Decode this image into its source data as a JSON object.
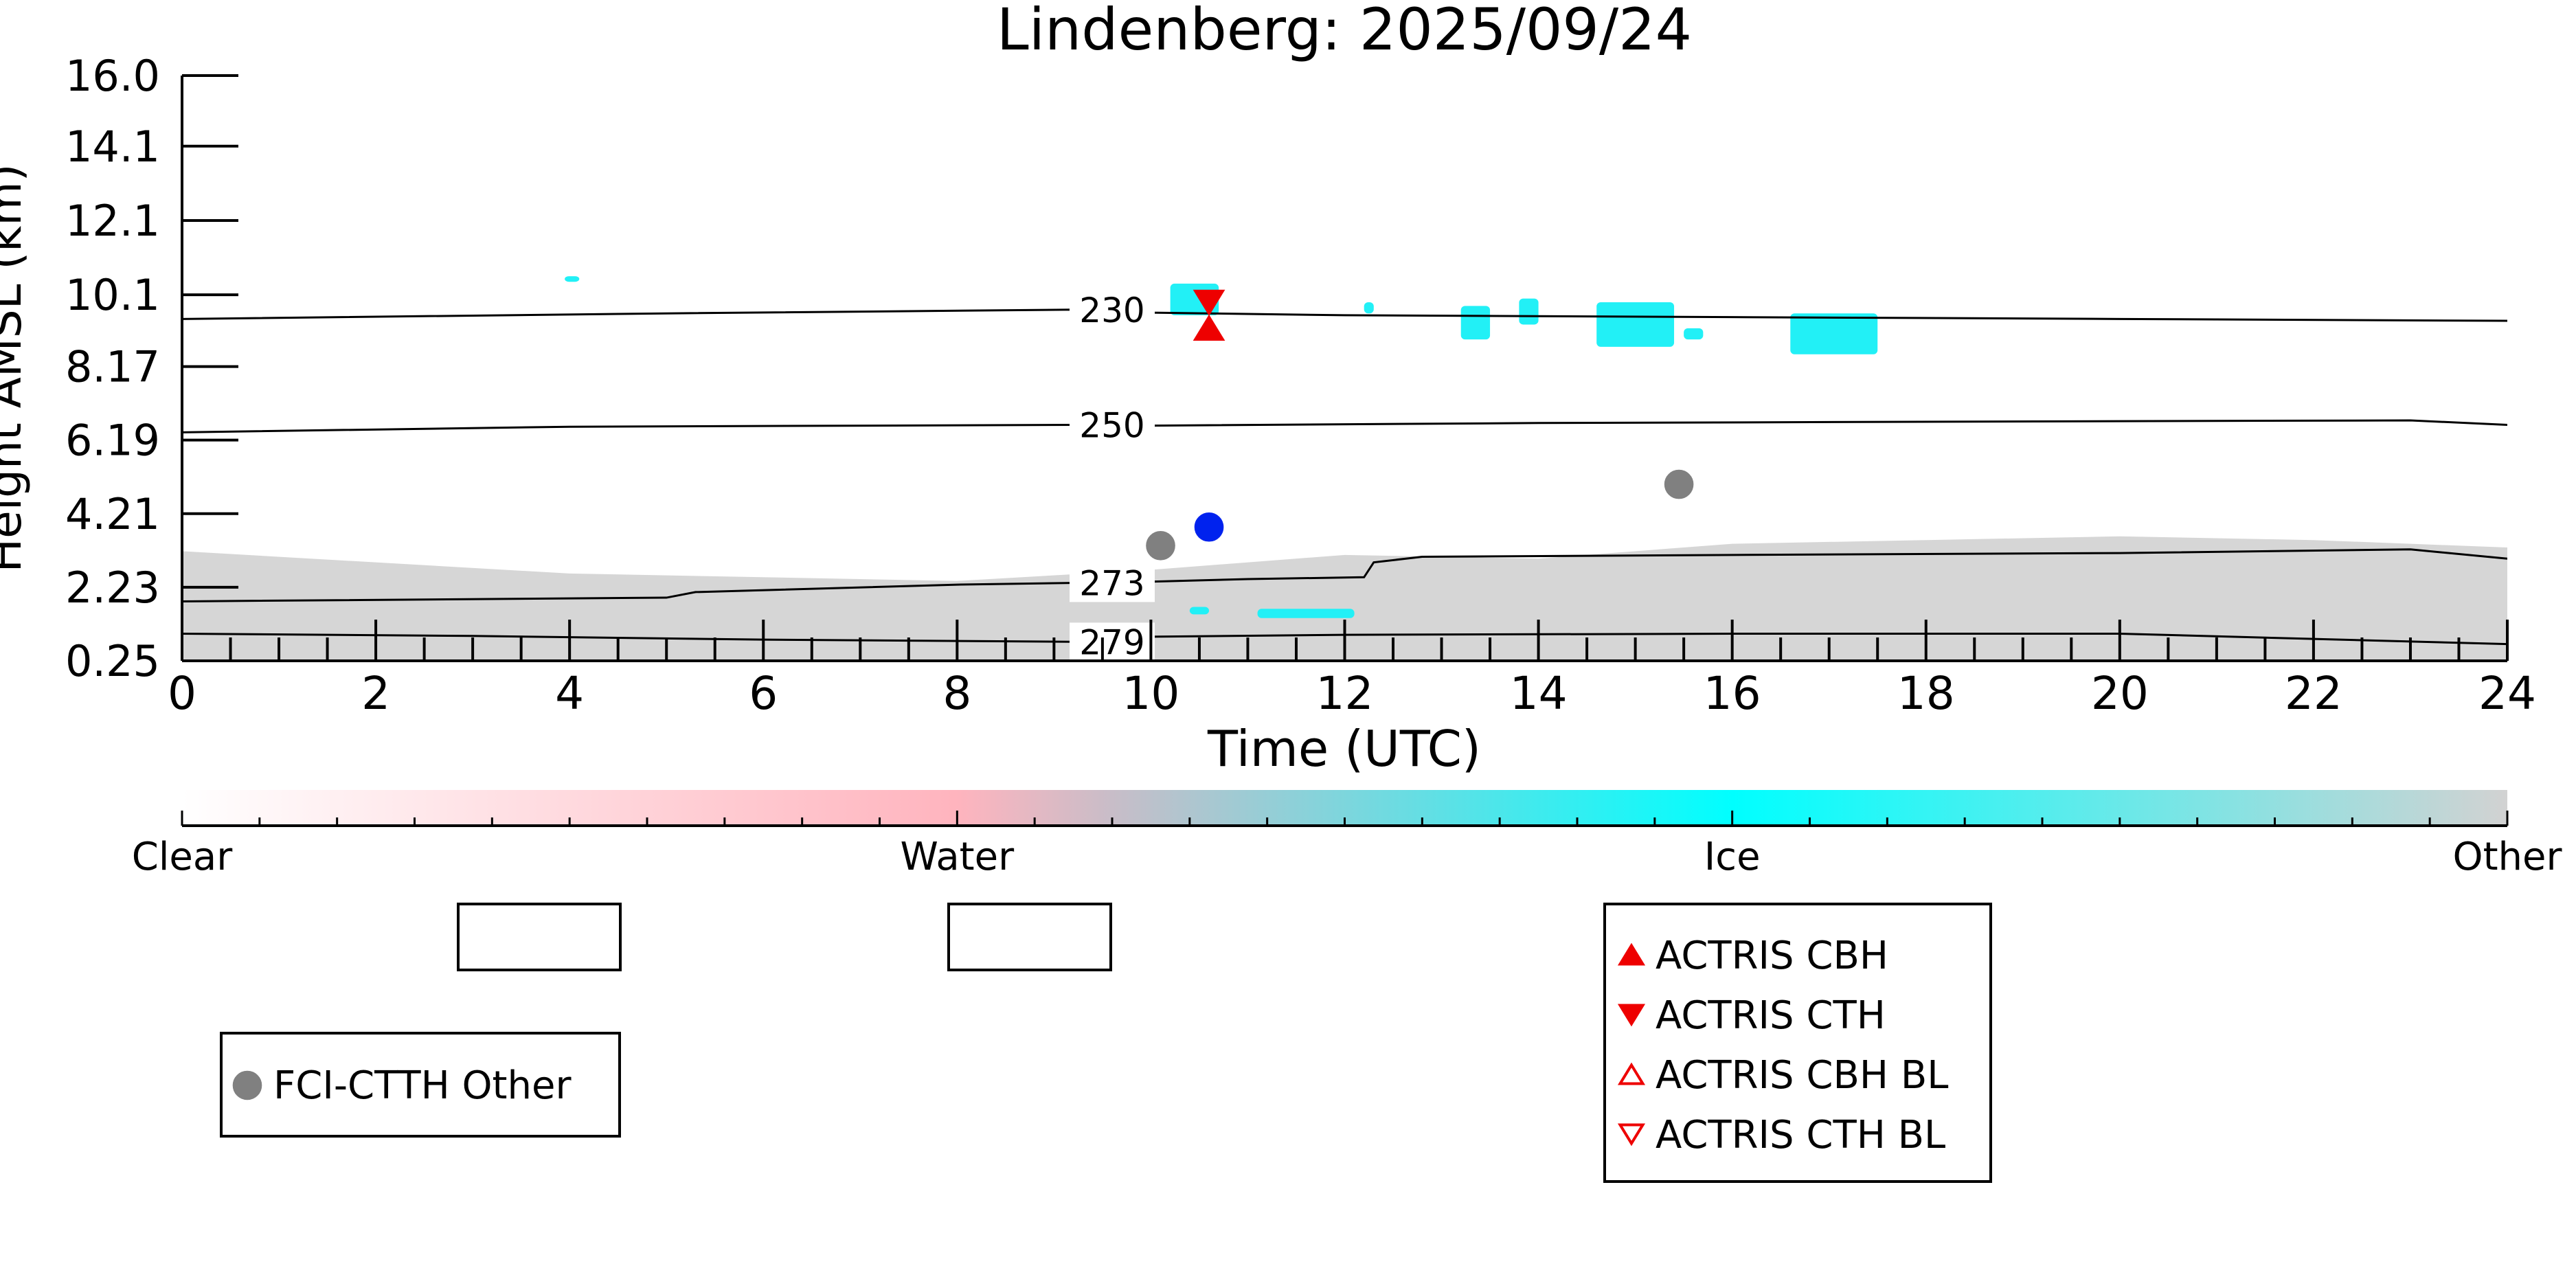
{
  "chart_data": {
    "type": "scatter",
    "title": "Lindenberg: 2025/09/24",
    "xlabel": "Time (UTC)",
    "ylabel": "Height AMSL (km)",
    "xlim": [
      0,
      24
    ],
    "ylim": [
      0.25,
      16.0
    ],
    "x_ticks": [
      0,
      2,
      4,
      6,
      8,
      10,
      12,
      14,
      16,
      18,
      20,
      22,
      24
    ],
    "y_ticks": [
      0.25,
      2.23,
      4.21,
      6.19,
      8.17,
      10.1,
      12.1,
      14.1,
      16.0
    ],
    "y_tick_labels": [
      "0.25",
      "2.23",
      "4.21",
      "6.19",
      "8.17",
      "10.1",
      "12.1",
      "14.1",
      "16.0"
    ],
    "grid": false,
    "colors": {
      "ice": "#22f0f6",
      "other": "#c8c8c8",
      "actris": "#ee0000",
      "fci_other": "#808080",
      "fci_blue": "#0022ee"
    },
    "temperature_contours": [
      {
        "label": "230",
        "points": [
          [
            0,
            9.45
          ],
          [
            5,
            9.6
          ],
          [
            9.2,
            9.7
          ],
          [
            10,
            9.62
          ],
          [
            12,
            9.55
          ],
          [
            16,
            9.5
          ],
          [
            20,
            9.45
          ],
          [
            24,
            9.4
          ]
        ]
      },
      {
        "label": "250",
        "points": [
          [
            0,
            6.4
          ],
          [
            4,
            6.55
          ],
          [
            9.2,
            6.6
          ],
          [
            10,
            6.58
          ],
          [
            14,
            6.65
          ],
          [
            20,
            6.7
          ],
          [
            23,
            6.72
          ],
          [
            24,
            6.6
          ]
        ]
      },
      {
        "label": "273",
        "points": [
          [
            0,
            1.85
          ],
          [
            5,
            1.95
          ],
          [
            5.3,
            2.1
          ],
          [
            8,
            2.3
          ],
          [
            9.3,
            2.35
          ],
          [
            10,
            2.38
          ],
          [
            11,
            2.45
          ],
          [
            12.2,
            2.5
          ],
          [
            12.3,
            2.9
          ],
          [
            12.8,
            3.05
          ],
          [
            16,
            3.1
          ],
          [
            20,
            3.15
          ],
          [
            23,
            3.25
          ],
          [
            24,
            3.0
          ]
        ]
      },
      {
        "label": "279",
        "points": [
          [
            0,
            0.98
          ],
          [
            3,
            0.92
          ],
          [
            6,
            0.82
          ],
          [
            9.3,
            0.76
          ],
          [
            9.9,
            0.78
          ],
          [
            10,
            0.9
          ],
          [
            12,
            0.95
          ],
          [
            16,
            0.98
          ],
          [
            20,
            0.98
          ],
          [
            24,
            0.7
          ]
        ]
      }
    ],
    "ice_clouds": [
      {
        "x": 3.95,
        "width": 0.15,
        "y": 10.45,
        "height": 0.15
      },
      {
        "x": 10.2,
        "width": 0.5,
        "y": 9.55,
        "height": 0.85
      },
      {
        "x": 12.2,
        "width": 0.1,
        "y": 9.6,
        "height": 0.3
      },
      {
        "x": 13.2,
        "width": 0.3,
        "y": 8.9,
        "height": 0.9
      },
      {
        "x": 13.8,
        "width": 0.2,
        "y": 9.3,
        "height": 0.7
      },
      {
        "x": 14.6,
        "width": 0.8,
        "y": 8.7,
        "height": 1.2
      },
      {
        "x": 15.5,
        "width": 0.2,
        "y": 8.9,
        "height": 0.3
      },
      {
        "x": 16.6,
        "width": 0.9,
        "y": 8.5,
        "height": 1.1
      },
      {
        "x": 10.4,
        "width": 0.2,
        "y": 1.5,
        "height": 0.2
      },
      {
        "x": 11.1,
        "width": 1.0,
        "y": 1.4,
        "height": 0.25
      }
    ],
    "other_background": {
      "x_range": [
        0,
        24
      ],
      "top": [
        [
          0,
          3.2
        ],
        [
          4,
          2.6
        ],
        [
          8,
          2.4
        ],
        [
          10,
          2.7
        ],
        [
          12,
          3.1
        ],
        [
          14,
          3.0
        ],
        [
          16,
          3.4
        ],
        [
          18,
          3.5
        ],
        [
          20,
          3.6
        ],
        [
          22,
          3.5
        ],
        [
          24,
          3.3
        ]
      ]
    },
    "series": [
      {
        "name": "ACTRIS CBH",
        "marker": "triangle-up",
        "filled": true,
        "color": "#ee0000",
        "points": [
          [
            10.6,
            9.2
          ]
        ]
      },
      {
        "name": "ACTRIS CTH",
        "marker": "triangle-down",
        "filled": true,
        "color": "#ee0000",
        "points": [
          [
            10.6,
            9.9
          ]
        ]
      },
      {
        "name": "ACTRIS CBH BL",
        "marker": "triangle-up",
        "filled": false,
        "color": "#ee0000",
        "points": []
      },
      {
        "name": "ACTRIS CTH BL",
        "marker": "triangle-down",
        "filled": false,
        "color": "#ee0000",
        "points": []
      },
      {
        "name": "FCI-CTTH Other",
        "marker": "circle",
        "filled": true,
        "color": "#808080",
        "points": [
          [
            10.1,
            3.35
          ],
          [
            15.45,
            5.0
          ]
        ]
      },
      {
        "points": [
          [
            10.6,
            3.85
          ]
        ],
        "marker": "circle",
        "filled": true,
        "color": "#0022ee"
      }
    ],
    "colorbar": {
      "labels": [
        "Clear",
        "Water",
        "Ice",
        "Other"
      ],
      "stops": [
        {
          "pos": 0.0,
          "color": "#ffffff"
        },
        {
          "pos": 0.333,
          "color": "#ffb4be"
        },
        {
          "pos": 0.4,
          "color": "#c8bdc8"
        },
        {
          "pos": 0.667,
          "color": "#00ffff"
        },
        {
          "pos": 1.0,
          "color": "#d2d2d2"
        }
      ]
    },
    "legend_placement": "bottom"
  }
}
